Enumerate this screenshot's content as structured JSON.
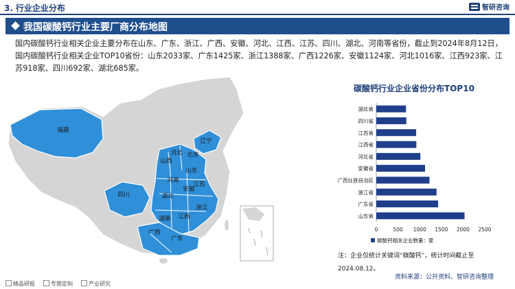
{
  "header": {
    "section_number": "3.",
    "section_title": "行业企业分布",
    "logo_text": "智研咨询"
  },
  "banner": {
    "title": "我国碳酸钙行业主要厂商分布地图"
  },
  "intro": {
    "text": "国内碳酸钙行业相关企业主要分布在山东、广东、浙江、广西、安徽、河北、江西、江苏、四川、湖北、河南等省份，截止到2024年8月12日，国内碳酸钙行业相关企业TOP10省份：山东2033家、广东1425家、浙江1388家、广西1226家、安徽1124家、河北1016家、江西923家、江苏918家、四川692家、湖北685家。"
  },
  "map": {
    "highlight_color": "#2f8fd8",
    "base_color": "#d5d5d5",
    "labels": [
      "福建",
      "辽宁",
      "河北",
      "北京",
      "山西",
      "山东",
      "河南",
      "安徽",
      "江苏",
      "四川",
      "湖北",
      "浙江",
      "湖南",
      "江西",
      "广西",
      "广东"
    ]
  },
  "chart_data": {
    "type": "bar",
    "orientation": "horizontal",
    "title": "碳酸钙行业企业省份分布TOP10",
    "categories": [
      "湖北省",
      "四川省",
      "江苏省",
      "江西省",
      "河北省",
      "安徽省",
      "广西壮族自治区",
      "浙江省",
      "广东省",
      "山东省"
    ],
    "series": [
      {
        "name": "碳酸钙相关企业数量：家",
        "values": [
          685,
          692,
          918,
          923,
          1016,
          1124,
          1226,
          1388,
          1425,
          2033
        ],
        "color": "#1f3f8a"
      }
    ],
    "xlim": [
      0,
      2500
    ],
    "xticks": [
      "0",
      "500",
      "1000",
      "1500",
      "2000",
      "2500"
    ],
    "grid": false,
    "legend_position": "bottom"
  },
  "note": {
    "text": "注：企业仅统计关键词“碳酸钙”，统计时间截止至2024.08.12。"
  },
  "source": {
    "text": "资料来源：公开资料、智研咨询整理"
  },
  "footer": {
    "items": [
      "精品研报",
      "专题定制",
      "产业研究"
    ]
  }
}
